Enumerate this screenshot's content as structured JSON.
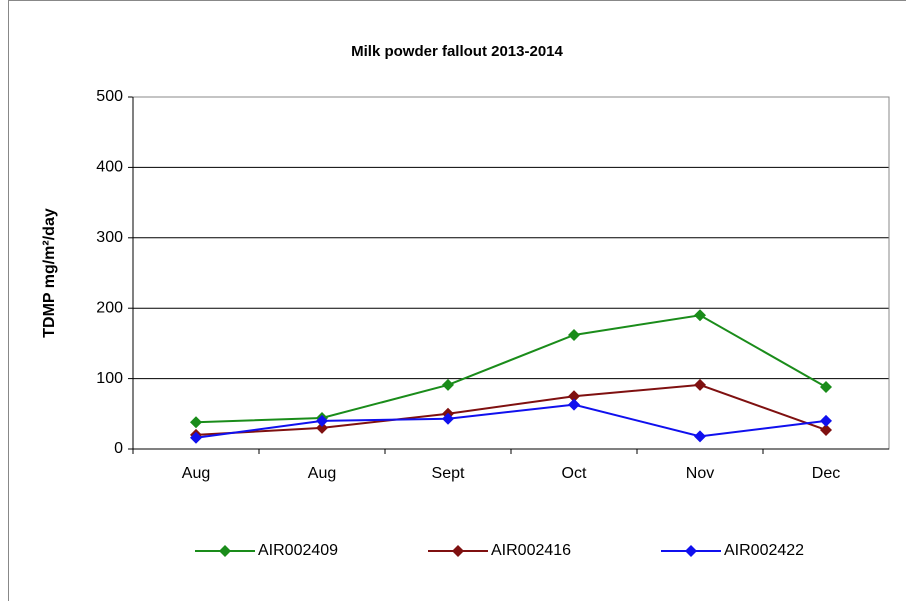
{
  "chart_data": {
    "type": "line",
    "title": "Milk powder fallout 2013-2014",
    "ylabel": "TDMP mg/m²/day",
    "categories": [
      "Aug",
      "Aug",
      "Sept",
      "Oct",
      "Nov",
      "Dec"
    ],
    "series": [
      {
        "name": "AIR002409",
        "color": "#1a8c1a",
        "values": [
          38,
          44,
          91,
          162,
          190,
          88
        ]
      },
      {
        "name": "AIR002416",
        "color": "#7f1010",
        "values": [
          20,
          30,
          50,
          75,
          91,
          27
        ]
      },
      {
        "name": "AIR002422",
        "color": "#1010ee",
        "values": [
          16,
          40,
          43,
          63,
          18,
          40
        ]
      }
    ],
    "ylim": [
      0,
      500
    ],
    "yticks": [
      0,
      100,
      200,
      300,
      400,
      500
    ],
    "grid": true,
    "legend": "bottom"
  }
}
